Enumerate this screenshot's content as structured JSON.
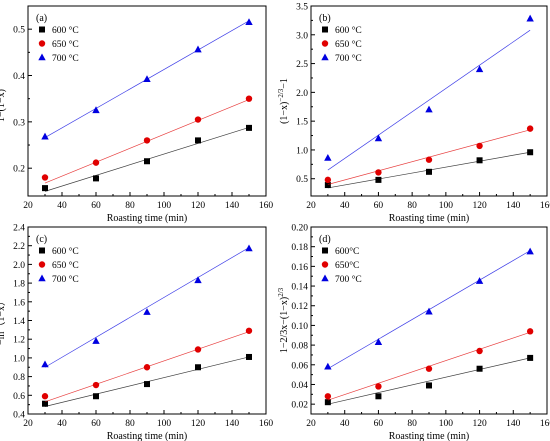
{
  "figure": {
    "panels": [
      "(a)",
      "(b)",
      "(c)",
      "(d)"
    ]
  },
  "chart_data": [
    {
      "panel": "(a)",
      "type": "scatter",
      "xlabel": "Roasting time (min)",
      "ylabel_html": "1−(1−x)<tspan baseline-shift='super' font-size='7'>1/3</tspan>",
      "xlim": [
        20,
        160
      ],
      "ylim": [
        0.14,
        0.55
      ],
      "xticks": [
        20,
        40,
        60,
        80,
        100,
        120,
        140,
        160
      ],
      "yticks": [
        0.2,
        0.3,
        0.4,
        0.5
      ],
      "ytick_decimals": 1,
      "legend_position": "top-left",
      "series": [
        {
          "name": "600 °C",
          "color": "#000000",
          "marker": "square",
          "x": [
            30,
            60,
            90,
            120,
            150
          ],
          "y": [
            0.157,
            0.178,
            0.215,
            0.26,
            0.287
          ],
          "fit": [
            [
              30,
              0.15
            ],
            [
              150,
              0.288
            ]
          ]
        },
        {
          "name": "650 °C",
          "color": "#e00000",
          "marker": "circle",
          "x": [
            30,
            60,
            90,
            120,
            150
          ],
          "y": [
            0.18,
            0.212,
            0.26,
            0.305,
            0.35
          ],
          "fit": [
            [
              30,
              0.168
            ],
            [
              150,
              0.348
            ]
          ]
        },
        {
          "name": "700 °C",
          "color": "#0000e0",
          "marker": "triangle",
          "x": [
            30,
            60,
            90,
            120,
            150
          ],
          "y": [
            0.268,
            0.325,
            0.392,
            0.456,
            0.515
          ],
          "fit": [
            [
              30,
              0.266
            ],
            [
              150,
              0.518
            ]
          ]
        }
      ]
    },
    {
      "panel": "(b)",
      "type": "scatter",
      "xlabel": "Roasting time (min)",
      "ylabel_html": "(1−x)<tspan baseline-shift='super' font-size='7'>−2/3</tspan>−1",
      "xlim": [
        20,
        160
      ],
      "ylim": [
        0.2,
        3.5
      ],
      "xticks": [
        20,
        40,
        60,
        80,
        100,
        120,
        140,
        160
      ],
      "yticks": [
        0.5,
        1.0,
        1.5,
        2.0,
        2.5,
        3.0,
        3.5
      ],
      "ytick_decimals": 1,
      "legend_position": "top-left",
      "series": [
        {
          "name": "600 °C",
          "color": "#000000",
          "marker": "square",
          "x": [
            30,
            60,
            90,
            120,
            150
          ],
          "y": [
            0.39,
            0.48,
            0.62,
            0.82,
            0.96
          ],
          "fit": [
            [
              30,
              0.34
            ],
            [
              150,
              0.96
            ]
          ]
        },
        {
          "name": "650 °C",
          "color": "#e00000",
          "marker": "circle",
          "x": [
            30,
            60,
            90,
            120,
            150
          ],
          "y": [
            0.48,
            0.61,
            0.83,
            1.07,
            1.37
          ],
          "fit": [
            [
              30,
              0.4
            ],
            [
              150,
              1.35
            ]
          ]
        },
        {
          "name": "700 °C",
          "color": "#0000e0",
          "marker": "triangle",
          "x": [
            30,
            60,
            90,
            120,
            150
          ],
          "y": [
            0.86,
            1.2,
            1.7,
            2.4,
            3.28
          ],
          "fit": [
            [
              30,
              0.65
            ],
            [
              150,
              3.08
            ]
          ]
        }
      ]
    },
    {
      "panel": "(c)",
      "type": "scatter",
      "xlabel": "Roasting time (min)",
      "ylabel_html": "−ln（1−x）",
      "xlim": [
        20,
        160
      ],
      "ylim": [
        0.4,
        2.4
      ],
      "xticks": [
        20,
        40,
        60,
        80,
        100,
        120,
        140,
        160
      ],
      "yticks": [
        0.4,
        0.6,
        0.8,
        1.0,
        1.2,
        1.4,
        1.6,
        1.8,
        2.0,
        2.2,
        2.4
      ],
      "ytick_decimals": 1,
      "legend_position": "top-left",
      "series": [
        {
          "name": "600 °C",
          "color": "#000000",
          "marker": "square",
          "x": [
            30,
            60,
            90,
            120,
            150
          ],
          "y": [
            0.51,
            0.59,
            0.72,
            0.9,
            1.01
          ],
          "fit": [
            [
              30,
              0.48
            ],
            [
              150,
              1.01
            ]
          ]
        },
        {
          "name": "650 °C",
          "color": "#e00000",
          "marker": "circle",
          "x": [
            30,
            60,
            90,
            120,
            150
          ],
          "y": [
            0.59,
            0.71,
            0.9,
            1.09,
            1.29
          ],
          "fit": [
            [
              30,
              0.53
            ],
            [
              150,
              1.28
            ]
          ]
        },
        {
          "name": "700 °C",
          "color": "#0000e0",
          "marker": "triangle",
          "x": [
            30,
            60,
            90,
            120,
            150
          ],
          "y": [
            0.93,
            1.18,
            1.49,
            1.83,
            2.17
          ],
          "fit": [
            [
              30,
              0.9
            ],
            [
              150,
              2.18
            ]
          ]
        }
      ]
    },
    {
      "panel": "(d)",
      "type": "scatter",
      "xlabel": "Roasting time (min)",
      "ylabel_html": "1−2/3x−(1−x)<tspan baseline-shift='super' font-size='7'>2/3</tspan>",
      "xlim": [
        20,
        160
      ],
      "ylim": [
        0.01,
        0.2
      ],
      "xticks": [
        20,
        40,
        60,
        80,
        100,
        120,
        140,
        160
      ],
      "yticks": [
        0.02,
        0.04,
        0.06,
        0.08,
        0.1,
        0.12,
        0.14,
        0.16,
        0.18,
        0.2
      ],
      "ytick_decimals": 2,
      "legend_position": "top-left",
      "series": [
        {
          "name": "600°C",
          "color": "#000000",
          "marker": "square",
          "x": [
            30,
            60,
            90,
            120,
            150
          ],
          "y": [
            0.022,
            0.028,
            0.039,
            0.056,
            0.067
          ],
          "fit": [
            [
              30,
              0.02
            ],
            [
              150,
              0.067
            ]
          ]
        },
        {
          "name": "650°C",
          "color": "#e00000",
          "marker": "circle",
          "x": [
            30,
            60,
            90,
            120,
            150
          ],
          "y": [
            0.028,
            0.038,
            0.056,
            0.074,
            0.094
          ],
          "fit": [
            [
              30,
              0.024
            ],
            [
              150,
              0.093
            ]
          ]
        },
        {
          "name": "700 °C",
          "color": "#0000e0",
          "marker": "triangle",
          "x": [
            30,
            60,
            90,
            120,
            150
          ],
          "y": [
            0.058,
            0.083,
            0.114,
            0.145,
            0.175
          ],
          "fit": [
            [
              30,
              0.056
            ],
            [
              150,
              0.176
            ]
          ]
        }
      ]
    }
  ]
}
